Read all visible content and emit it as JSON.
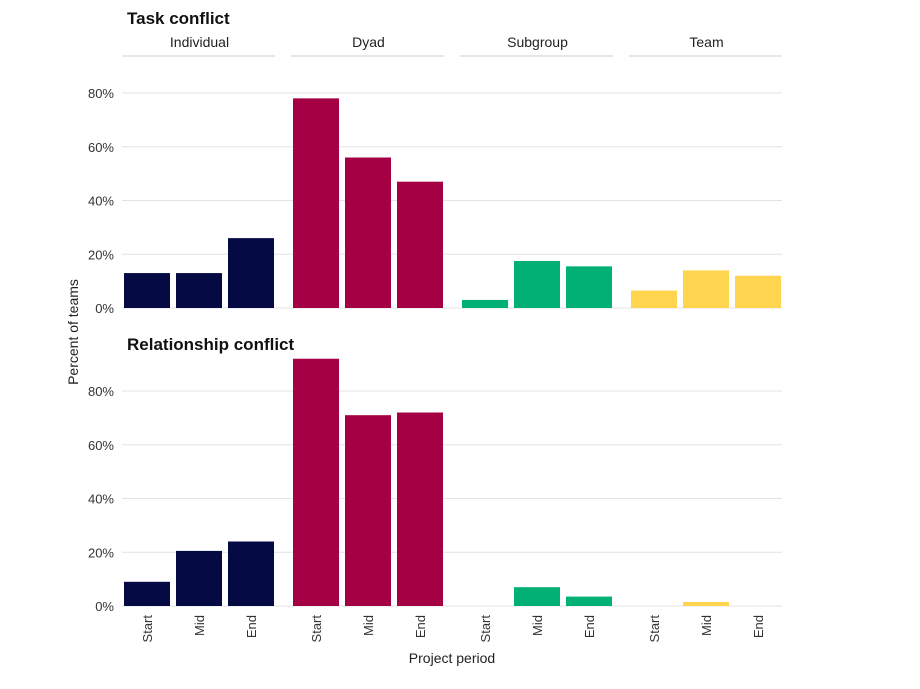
{
  "chart_data": {
    "type": "bar",
    "facets": [
      "Individual",
      "Dyad",
      "Subgroup",
      "Team"
    ],
    "categories": [
      "Start",
      "Mid",
      "End"
    ],
    "xlabel": "Project period",
    "ylabel": "Percent of teams",
    "ylim": [
      0,
      90
    ],
    "y_ticks": [
      "0%",
      "20%",
      "40%",
      "60%",
      "80%"
    ],
    "grid": true,
    "colors": {
      "Individual": "#050a45",
      "Dyad": "#a50044",
      "Subgroup": "#00b074",
      "Team": "#ffd54f"
    },
    "panels": [
      {
        "title": "Task conflict",
        "series": [
          {
            "facet": "Individual",
            "values": [
              13,
              13,
              26
            ]
          },
          {
            "facet": "Dyad",
            "values": [
              78,
              56,
              47
            ]
          },
          {
            "facet": "Subgroup",
            "values": [
              3,
              17.5,
              15.5
            ]
          },
          {
            "facet": "Team",
            "values": [
              6.5,
              14,
              12
            ]
          }
        ]
      },
      {
        "title": "Relationship conflict",
        "series": [
          {
            "facet": "Individual",
            "values": [
              9,
              20.5,
              24
            ]
          },
          {
            "facet": "Dyad",
            "values": [
              92,
              71,
              72
            ]
          },
          {
            "facet": "Subgroup",
            "values": [
              0,
              7,
              3.5
            ]
          },
          {
            "facet": "Team",
            "values": [
              0,
              1.5,
              0
            ]
          }
        ]
      }
    ]
  }
}
